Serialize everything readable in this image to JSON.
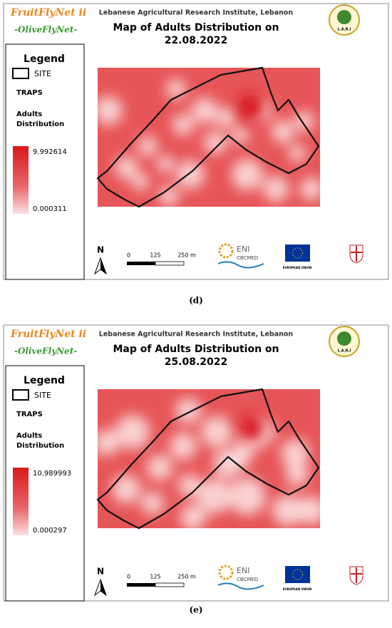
{
  "panels": [
    {
      "brand": "FruitFlyNet ii",
      "subtitle": "-OliveFlyNet-",
      "institute": "Lebanese Agricultural Research Institute, Lebanon",
      "title": "Map of Adults Distribution on",
      "date": "22.08.2022",
      "logo_text": "L.A.R.I",
      "legend": {
        "title": "Legend",
        "site": "SITE",
        "traps": "TRAPS",
        "label": [
          "Adults",
          "Distribution"
        ],
        "max": 9.992614,
        "min": 0.000311
      },
      "north": "N",
      "scale_labels": [
        "0",
        "125",
        "250 m"
      ],
      "eni": "ENI",
      "cbcmed": "CBCMED",
      "eu": "EUROPEAN UNION",
      "caption": "(d)"
    },
    {
      "brand": "FruitFlyNet ii",
      "subtitle": "-OliveFlyNet-",
      "institute": "Lebanese Agricultural Research Institute, Lebanon",
      "title": "Map of Adults Distribution on",
      "date": "25.08.2022",
      "logo_text": "L.A.R.I",
      "legend": {
        "title": "Legend",
        "site": "SITE",
        "traps": "TRAPS",
        "label": [
          "Adults",
          "Distribution"
        ],
        "max": 10.989993,
        "min": 0.000297
      },
      "north": "N",
      "scale_labels": [
        "0",
        "125",
        "250 m"
      ],
      "eni": "ENI",
      "cbcmed": "CBCMED",
      "eu": "EUROPEAN UNION",
      "caption": "(e)"
    }
  ]
}
